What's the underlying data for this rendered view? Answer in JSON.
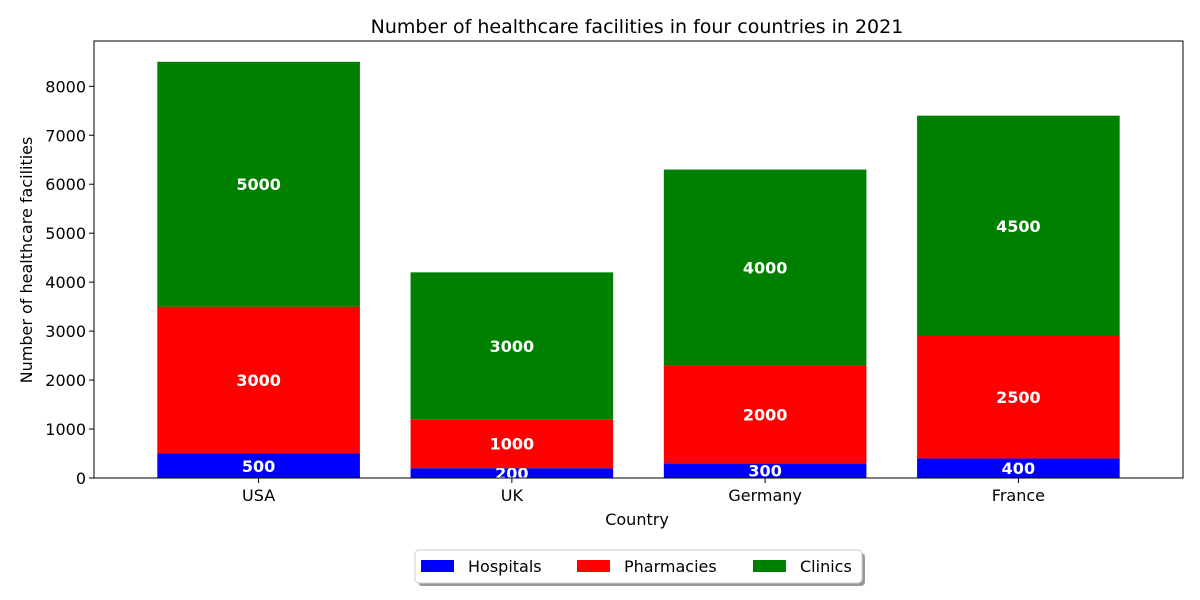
{
  "chart_data": {
    "type": "bar",
    "stacked": true,
    "title": "Number of healthcare facilities in four countries in 2021",
    "xlabel": "Country",
    "ylabel": "Number of healthcare facilities",
    "categories": [
      "USA",
      "UK",
      "Germany",
      "France"
    ],
    "series": [
      {
        "name": "Hospitals",
        "color": "#0000ff",
        "values": [
          500,
          200,
          300,
          400
        ]
      },
      {
        "name": "Pharmacies",
        "color": "#ff0000",
        "values": [
          3000,
          1000,
          2000,
          2500
        ]
      },
      {
        "name": "Clinics",
        "color": "#008000",
        "values": [
          5000,
          3000,
          4000,
          4500
        ]
      }
    ],
    "ylim": [
      0,
      8925
    ],
    "yticks": [
      0,
      1000,
      2000,
      3000,
      4000,
      5000,
      6000,
      7000,
      8000
    ],
    "grid": false,
    "legend_position": "bottom-center"
  }
}
